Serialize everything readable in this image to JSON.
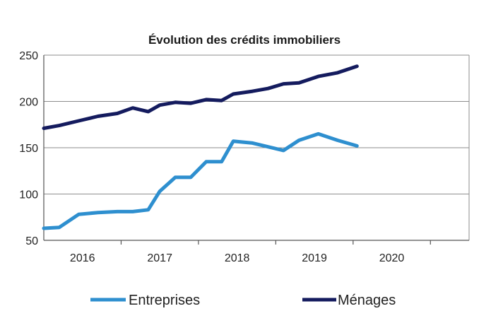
{
  "chart_data": {
    "type": "line",
    "title": "Évolution des crédits immobiliers",
    "xlabel": "",
    "ylabel": "",
    "ylim": [
      50,
      250
    ],
    "yticks": [
      "250",
      "200",
      "150",
      "100",
      "50"
    ],
    "ytick_values": [
      250,
      200,
      150,
      100,
      50
    ],
    "xlim": [
      2015.5,
      2021.0
    ],
    "xticks": [
      "2016",
      "2017",
      "2018",
      "2019",
      "2020"
    ],
    "xtick_positions": [
      2016,
      2017,
      2018,
      2019,
      2020
    ],
    "xgrid_positions": [
      2016.5,
      2017.5,
      2018.5,
      2019.5,
      2020.5
    ],
    "grid": "horizontal",
    "legend_position": "bottom",
    "x": [
      2015.5,
      2015.7,
      2015.95,
      2016.2,
      2016.45,
      2016.65,
      2016.85,
      2017.0,
      2017.2,
      2017.4,
      2017.6,
      2017.8,
      2017.95,
      2018.2,
      2018.4,
      2018.6,
      2018.8,
      2019.05,
      2019.3,
      2019.55,
      2019.75,
      2020.0,
      2020.2,
      2020.45,
      2020.7
    ],
    "series": [
      {
        "name": "Entreprises",
        "color": "#2e8fcf",
        "values": [
          63,
          64,
          78,
          80,
          81,
          81,
          83,
          103,
          118,
          118,
          135,
          135,
          157,
          155,
          151,
          147,
          158,
          165,
          158,
          152,
          null,
          null,
          null,
          null,
          null
        ]
      },
      {
        "name": "Ménages",
        "color": "#141b5e",
        "values": [
          171,
          174,
          179,
          184,
          187,
          193,
          189,
          196,
          199,
          198,
          202,
          201,
          208,
          211,
          214,
          219,
          220,
          227,
          231,
          238,
          null,
          null,
          null,
          null,
          null
        ]
      }
    ]
  }
}
